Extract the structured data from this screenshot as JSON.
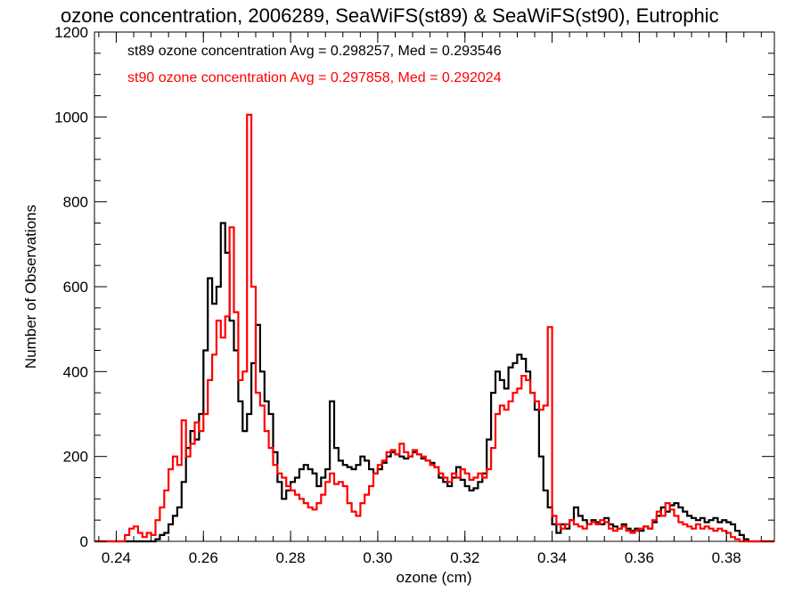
{
  "chart_data": {
    "type": "line",
    "title": "ozone concentration, 2006289, SeaWiFS(st89) & SeaWiFS(st90), Eutrophic",
    "xlabel": "ozone (cm)",
    "ylabel": "Number of Observations",
    "xlim": [
      0.235,
      0.391
    ],
    "ylim": [
      0,
      1200
    ],
    "x_ticks": [
      "0.24",
      "0.26",
      "0.28",
      "0.30",
      "0.32",
      "0.34",
      "0.36",
      "0.38"
    ],
    "y_ticks": [
      "0",
      "200",
      "400",
      "600",
      "800",
      "1000",
      "1200"
    ],
    "grid": false,
    "step": true,
    "series": [
      {
        "name": "st89",
        "color": "#000000",
        "legend": "st89 ozone concentration Avg = 0.298257, Med = 0.293546",
        "points": [
          [
            0.235,
            0
          ],
          [
            0.248,
            0
          ],
          [
            0.249,
            5
          ],
          [
            0.25,
            15
          ],
          [
            0.251,
            20
          ],
          [
            0.252,
            40
          ],
          [
            0.253,
            60
          ],
          [
            0.254,
            80
          ],
          [
            0.255,
            140
          ],
          [
            0.256,
            220
          ],
          [
            0.257,
            260
          ],
          [
            0.258,
            240
          ],
          [
            0.259,
            300
          ],
          [
            0.26,
            450
          ],
          [
            0.261,
            620
          ],
          [
            0.262,
            560
          ],
          [
            0.263,
            600
          ],
          [
            0.264,
            750
          ],
          [
            0.265,
            680
          ],
          [
            0.266,
            520
          ],
          [
            0.267,
            450
          ],
          [
            0.268,
            330
          ],
          [
            0.269,
            260
          ],
          [
            0.27,
            300
          ],
          [
            0.271,
            420
          ],
          [
            0.272,
            510
          ],
          [
            0.273,
            400
          ],
          [
            0.274,
            330
          ],
          [
            0.275,
            300
          ],
          [
            0.276,
            210
          ],
          [
            0.277,
            140
          ],
          [
            0.278,
            100
          ],
          [
            0.279,
            120
          ],
          [
            0.28,
            140
          ],
          [
            0.281,
            150
          ],
          [
            0.282,
            170
          ],
          [
            0.283,
            180
          ],
          [
            0.284,
            170
          ],
          [
            0.285,
            160
          ],
          [
            0.286,
            130
          ],
          [
            0.287,
            150
          ],
          [
            0.288,
            170
          ],
          [
            0.289,
            330
          ],
          [
            0.29,
            220
          ],
          [
            0.291,
            190
          ],
          [
            0.292,
            180
          ],
          [
            0.293,
            175
          ],
          [
            0.294,
            170
          ],
          [
            0.295,
            180
          ],
          [
            0.296,
            200
          ],
          [
            0.297,
            190
          ],
          [
            0.298,
            170
          ],
          [
            0.299,
            160
          ],
          [
            0.3,
            170
          ],
          [
            0.301,
            185
          ],
          [
            0.302,
            200
          ],
          [
            0.303,
            210
          ],
          [
            0.304,
            205
          ],
          [
            0.305,
            200
          ],
          [
            0.306,
            195
          ],
          [
            0.307,
            200
          ],
          [
            0.308,
            210
          ],
          [
            0.309,
            205
          ],
          [
            0.31,
            195
          ],
          [
            0.311,
            190
          ],
          [
            0.312,
            185
          ],
          [
            0.313,
            175
          ],
          [
            0.314,
            150
          ],
          [
            0.315,
            140
          ],
          [
            0.316,
            130
          ],
          [
            0.317,
            150
          ],
          [
            0.318,
            175
          ],
          [
            0.319,
            145
          ],
          [
            0.32,
            130
          ],
          [
            0.321,
            120
          ],
          [
            0.322,
            125
          ],
          [
            0.323,
            140
          ],
          [
            0.324,
            160
          ],
          [
            0.325,
            240
          ],
          [
            0.326,
            350
          ],
          [
            0.327,
            400
          ],
          [
            0.328,
            380
          ],
          [
            0.329,
            360
          ],
          [
            0.33,
            410
          ],
          [
            0.331,
            420
          ],
          [
            0.332,
            440
          ],
          [
            0.333,
            430
          ],
          [
            0.334,
            400
          ],
          [
            0.335,
            350
          ],
          [
            0.336,
            310
          ],
          [
            0.337,
            200
          ],
          [
            0.338,
            120
          ],
          [
            0.339,
            80
          ],
          [
            0.34,
            40
          ],
          [
            0.341,
            20
          ],
          [
            0.342,
            40
          ],
          [
            0.343,
            30
          ],
          [
            0.344,
            50
          ],
          [
            0.345,
            80
          ],
          [
            0.346,
            60
          ],
          [
            0.347,
            50
          ],
          [
            0.348,
            40
          ],
          [
            0.349,
            50
          ],
          [
            0.35,
            45
          ],
          [
            0.351,
            40
          ],
          [
            0.352,
            55
          ],
          [
            0.353,
            40
          ],
          [
            0.354,
            35
          ],
          [
            0.355,
            30
          ],
          [
            0.356,
            40
          ],
          [
            0.357,
            30
          ],
          [
            0.358,
            25
          ],
          [
            0.359,
            30
          ],
          [
            0.36,
            25
          ],
          [
            0.361,
            35
          ],
          [
            0.362,
            30
          ],
          [
            0.363,
            45
          ],
          [
            0.364,
            60
          ],
          [
            0.365,
            80
          ],
          [
            0.366,
            70
          ],
          [
            0.367,
            85
          ],
          [
            0.368,
            90
          ],
          [
            0.369,
            80
          ],
          [
            0.37,
            70
          ],
          [
            0.371,
            60
          ],
          [
            0.372,
            55
          ],
          [
            0.373,
            50
          ],
          [
            0.374,
            55
          ],
          [
            0.375,
            45
          ],
          [
            0.376,
            50
          ],
          [
            0.377,
            55
          ],
          [
            0.378,
            45
          ],
          [
            0.379,
            50
          ],
          [
            0.38,
            45
          ],
          [
            0.381,
            40
          ],
          [
            0.382,
            25
          ],
          [
            0.383,
            15
          ],
          [
            0.384,
            5
          ],
          [
            0.385,
            0
          ],
          [
            0.391,
            0
          ]
        ]
      },
      {
        "name": "st90",
        "color": "#ff0000",
        "legend": "st90 ozone concentration Avg = 0.297858, Med = 0.292024",
        "points": [
          [
            0.235,
            0
          ],
          [
            0.241,
            0
          ],
          [
            0.242,
            15
          ],
          [
            0.243,
            30
          ],
          [
            0.244,
            35
          ],
          [
            0.245,
            20
          ],
          [
            0.246,
            10
          ],
          [
            0.247,
            20
          ],
          [
            0.248,
            15
          ],
          [
            0.249,
            50
          ],
          [
            0.25,
            80
          ],
          [
            0.251,
            120
          ],
          [
            0.252,
            170
          ],
          [
            0.253,
            200
          ],
          [
            0.254,
            180
          ],
          [
            0.255,
            285
          ],
          [
            0.256,
            200
          ],
          [
            0.257,
            230
          ],
          [
            0.258,
            280
          ],
          [
            0.259,
            260
          ],
          [
            0.26,
            300
          ],
          [
            0.261,
            380
          ],
          [
            0.262,
            440
          ],
          [
            0.263,
            520
          ],
          [
            0.264,
            480
          ],
          [
            0.265,
            530
          ],
          [
            0.266,
            740
          ],
          [
            0.267,
            540
          ],
          [
            0.268,
            380
          ],
          [
            0.269,
            400
          ],
          [
            0.27,
            1005
          ],
          [
            0.271,
            600
          ],
          [
            0.272,
            350
          ],
          [
            0.273,
            320
          ],
          [
            0.274,
            260
          ],
          [
            0.275,
            220
          ],
          [
            0.276,
            180
          ],
          [
            0.277,
            160
          ],
          [
            0.278,
            150
          ],
          [
            0.279,
            130
          ],
          [
            0.28,
            120
          ],
          [
            0.281,
            110
          ],
          [
            0.282,
            100
          ],
          [
            0.283,
            90
          ],
          [
            0.284,
            80
          ],
          [
            0.285,
            75
          ],
          [
            0.286,
            90
          ],
          [
            0.287,
            110
          ],
          [
            0.288,
            140
          ],
          [
            0.289,
            160
          ],
          [
            0.29,
            135
          ],
          [
            0.291,
            140
          ],
          [
            0.292,
            130
          ],
          [
            0.293,
            90
          ],
          [
            0.294,
            70
          ],
          [
            0.295,
            60
          ],
          [
            0.296,
            90
          ],
          [
            0.297,
            110
          ],
          [
            0.298,
            130
          ],
          [
            0.299,
            160
          ],
          [
            0.3,
            180
          ],
          [
            0.301,
            190
          ],
          [
            0.302,
            210
          ],
          [
            0.303,
            215
          ],
          [
            0.304,
            205
          ],
          [
            0.305,
            230
          ],
          [
            0.306,
            210
          ],
          [
            0.307,
            200
          ],
          [
            0.308,
            215
          ],
          [
            0.309,
            205
          ],
          [
            0.31,
            200
          ],
          [
            0.311,
            190
          ],
          [
            0.312,
            180
          ],
          [
            0.313,
            175
          ],
          [
            0.314,
            160
          ],
          [
            0.315,
            150
          ],
          [
            0.316,
            140
          ],
          [
            0.317,
            160
          ],
          [
            0.318,
            150
          ],
          [
            0.319,
            170
          ],
          [
            0.32,
            160
          ],
          [
            0.321,
            145
          ],
          [
            0.322,
            150
          ],
          [
            0.323,
            160
          ],
          [
            0.324,
            150
          ],
          [
            0.325,
            170
          ],
          [
            0.326,
            220
          ],
          [
            0.327,
            300
          ],
          [
            0.328,
            320
          ],
          [
            0.329,
            310
          ],
          [
            0.33,
            330
          ],
          [
            0.331,
            350
          ],
          [
            0.332,
            360
          ],
          [
            0.333,
            390
          ],
          [
            0.334,
            380
          ],
          [
            0.335,
            350
          ],
          [
            0.336,
            330
          ],
          [
            0.337,
            310
          ],
          [
            0.338,
            320
          ],
          [
            0.339,
            505
          ],
          [
            0.34,
            60
          ],
          [
            0.341,
            40
          ],
          [
            0.342,
            30
          ],
          [
            0.343,
            40
          ],
          [
            0.344,
            50
          ],
          [
            0.345,
            40
          ],
          [
            0.346,
            35
          ],
          [
            0.347,
            30
          ],
          [
            0.348,
            40
          ],
          [
            0.349,
            45
          ],
          [
            0.35,
            40
          ],
          [
            0.351,
            50
          ],
          [
            0.352,
            45
          ],
          [
            0.353,
            30
          ],
          [
            0.354,
            25
          ],
          [
            0.355,
            30
          ],
          [
            0.356,
            35
          ],
          [
            0.357,
            25
          ],
          [
            0.358,
            20
          ],
          [
            0.359,
            25
          ],
          [
            0.36,
            30
          ],
          [
            0.361,
            35
          ],
          [
            0.362,
            30
          ],
          [
            0.363,
            50
          ],
          [
            0.364,
            70
          ],
          [
            0.365,
            60
          ],
          [
            0.366,
            90
          ],
          [
            0.367,
            75
          ],
          [
            0.368,
            60
          ],
          [
            0.369,
            45
          ],
          [
            0.37,
            40
          ],
          [
            0.371,
            35
          ],
          [
            0.372,
            30
          ],
          [
            0.373,
            40
          ],
          [
            0.374,
            30
          ],
          [
            0.375,
            35
          ],
          [
            0.376,
            30
          ],
          [
            0.377,
            25
          ],
          [
            0.378,
            30
          ],
          [
            0.379,
            25
          ],
          [
            0.38,
            20
          ],
          [
            0.381,
            10
          ],
          [
            0.382,
            5
          ],
          [
            0.383,
            0
          ],
          [
            0.391,
            0
          ]
        ]
      }
    ]
  }
}
